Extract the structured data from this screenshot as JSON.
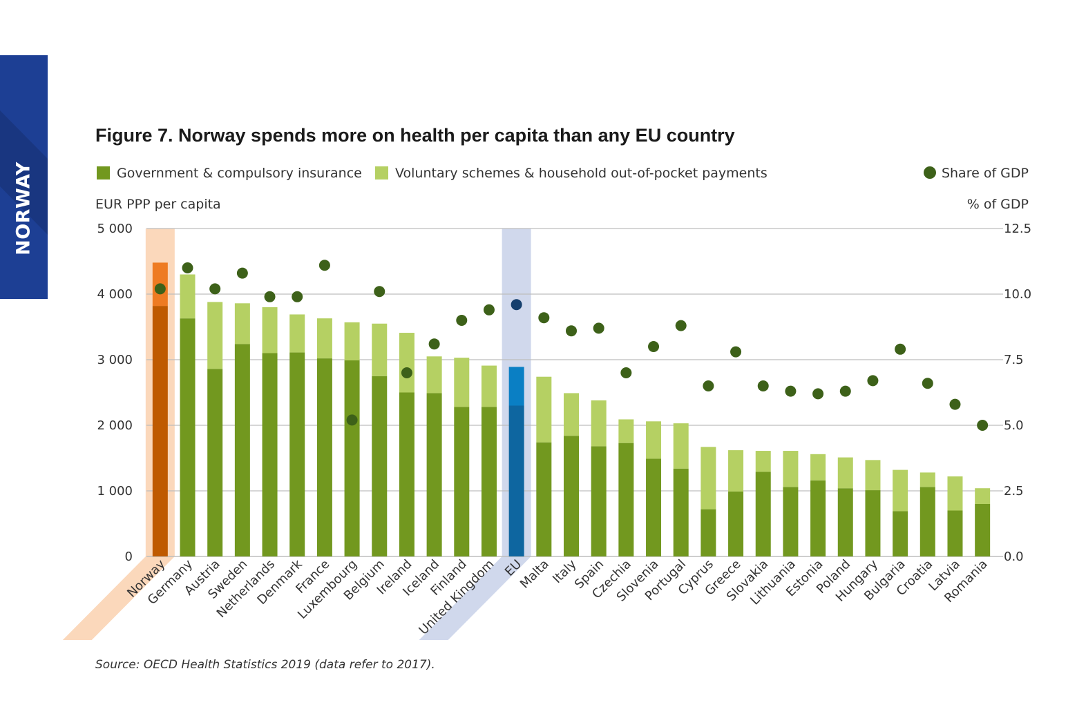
{
  "side_tab": {
    "label": "NORWAY"
  },
  "colors": {
    "government": "#72981f",
    "voluntary": "#b5d063",
    "share_gdp": "#3d6119",
    "norway_government": "#bf5a00",
    "norway_voluntary": "#ee7b22",
    "norway_band": "#fbd8bb",
    "eu_government": "#0e66a0",
    "eu_voluntary": "#0a7fc4",
    "eu_band": "#d0d8ec",
    "eu_dot": "#16406e",
    "grid": "#bdbdbd"
  },
  "chart_data": {
    "type": "bar",
    "title": "Figure 7. Norway spends more on health per capita than any EU country",
    "ylabel": "EUR PPP per capita",
    "y2label": "% of GDP",
    "ylim": [
      0,
      5000
    ],
    "y2lim": [
      0,
      12.5
    ],
    "yticks": [
      "0",
      "1 000",
      "2 000",
      "3 000",
      "4 000",
      "5 000"
    ],
    "y2ticks": [
      "0.0",
      "2.5",
      "5.0",
      "7.5",
      "10.0",
      "12.5"
    ],
    "stacked": true,
    "grid": true,
    "legend_position": "top",
    "categories": [
      "Norway",
      "Germany",
      "Austria",
      "Sweden",
      "Netherlands",
      "Denmark",
      "France",
      "Luxembourg",
      "Belgium",
      "Ireland",
      "Iceland",
      "Finland",
      "United Kingdom",
      "EU",
      "Malta",
      "Italy",
      "Spain",
      "Czechia",
      "Slovenia",
      "Portugal",
      "Cyprus",
      "Greece",
      "Slovakia",
      "Lithuania",
      "Estonia",
      "Poland",
      "Hungary",
      "Bulgaria",
      "Croatia",
      "Latvia",
      "Romania"
    ],
    "series": [
      {
        "name": "Government & compulsory insurance",
        "axis": "left",
        "values": [
          3820,
          3630,
          2860,
          3240,
          3100,
          3110,
          3020,
          2990,
          2750,
          2500,
          2490,
          2280,
          2280,
          2300,
          1740,
          1840,
          1680,
          1730,
          1490,
          1340,
          720,
          990,
          1290,
          1060,
          1160,
          1040,
          1010,
          690,
          1060,
          700,
          800
        ]
      },
      {
        "name": "Voluntary schemes & household out-of-pocket payments",
        "axis": "left",
        "values": [
          660,
          670,
          1020,
          620,
          700,
          580,
          610,
          580,
          800,
          910,
          560,
          750,
          630,
          590,
          1000,
          650,
          700,
          360,
          570,
          690,
          950,
          630,
          320,
          550,
          400,
          470,
          460,
          630,
          220,
          520,
          240
        ]
      },
      {
        "name": "Share of GDP",
        "axis": "right",
        "type": "scatter",
        "values": [
          10.2,
          11.0,
          10.2,
          10.8,
          9.9,
          9.9,
          11.1,
          5.2,
          10.1,
          7.0,
          8.1,
          9.0,
          9.4,
          9.6,
          9.1,
          8.6,
          8.7,
          7.0,
          8.0,
          8.8,
          6.5,
          7.8,
          6.5,
          6.3,
          6.2,
          6.3,
          6.7,
          7.9,
          6.6,
          5.8,
          5.0
        ]
      }
    ],
    "highlighted": [
      "Norway",
      "EU"
    ],
    "source": "Source: OECD Health Statistics 2019 (data refer to 2017)."
  }
}
